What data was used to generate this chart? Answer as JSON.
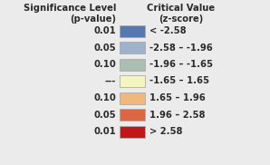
{
  "title_left": "Significance Level\n(p-value)",
  "title_right": "Critical Value\n(z-score)",
  "rows": [
    {
      "pvalue": "0.01",
      "color": "#5578b0",
      "label": "< -2.58"
    },
    {
      "pvalue": "0.05",
      "color": "#9db3cc",
      "label": "-2.58 – -1.96"
    },
    {
      "pvalue": "0.10",
      "color": "#aabfb2",
      "label": "-1.96 – -1.65"
    },
    {
      "pvalue": "---",
      "color": "#f5f5c0",
      "label": "-1.65 – 1.65"
    },
    {
      "pvalue": "0.10",
      "color": "#f0b87a",
      "label": "1.65 – 1.96"
    },
    {
      "pvalue": "0.05",
      "color": "#dc6644",
      "label": "1.96 – 2.58"
    },
    {
      "pvalue": "0.01",
      "color": "#c01818",
      "label": "> 2.58"
    }
  ],
  "bg_color": "#ebebeb",
  "text_color": "#2a2a2a",
  "header_fontsize": 7.2,
  "row_fontsize": 7.2,
  "box_edge_color": "#aaaaaa"
}
